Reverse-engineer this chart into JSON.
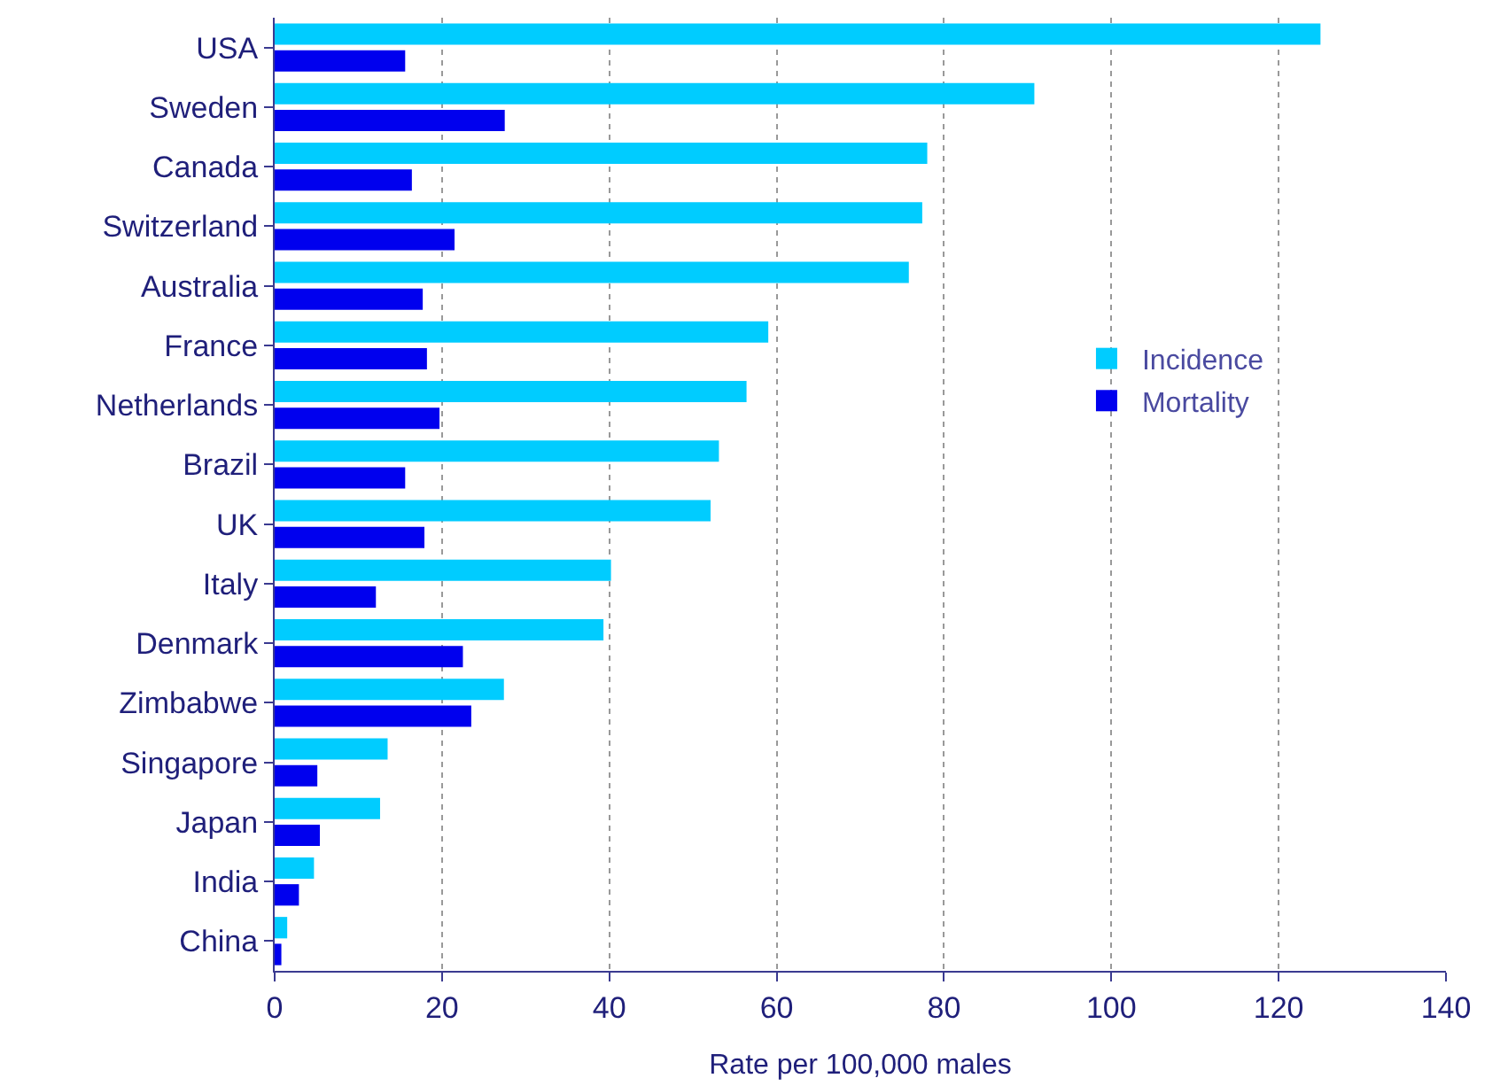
{
  "chart_data": {
    "type": "bar",
    "orientation": "horizontal",
    "xlabel": "Rate per 100,000 males",
    "categories": [
      "USA",
      "Sweden",
      "Canada",
      "Switzerland",
      "Australia",
      "France",
      "Netherlands",
      "Brazil",
      "UK",
      "Italy",
      "Denmark",
      "Zimbabwe",
      "Singapore",
      "Japan",
      "India",
      "China"
    ],
    "series": [
      {
        "name": "Incidence",
        "color": "#00ccff",
        "values": [
          125,
          90.8,
          78,
          77.4,
          75.8,
          59,
          56.4,
          53.1,
          52.1,
          40.2,
          39.3,
          27.4,
          13.5,
          12.6,
          4.7,
          1.5
        ]
      },
      {
        "name": "Mortality",
        "color": "#0000ee",
        "values": [
          15.6,
          27.5,
          16.4,
          21.5,
          17.7,
          18.2,
          19.7,
          15.6,
          17.9,
          12.1,
          22.5,
          23.5,
          5.1,
          5.4,
          2.9,
          0.8
        ]
      }
    ],
    "xlim": [
      0,
      140
    ],
    "xticks": [
      0,
      20,
      40,
      60,
      80,
      100,
      120,
      140
    ],
    "grid": "x",
    "legend": "right"
  }
}
